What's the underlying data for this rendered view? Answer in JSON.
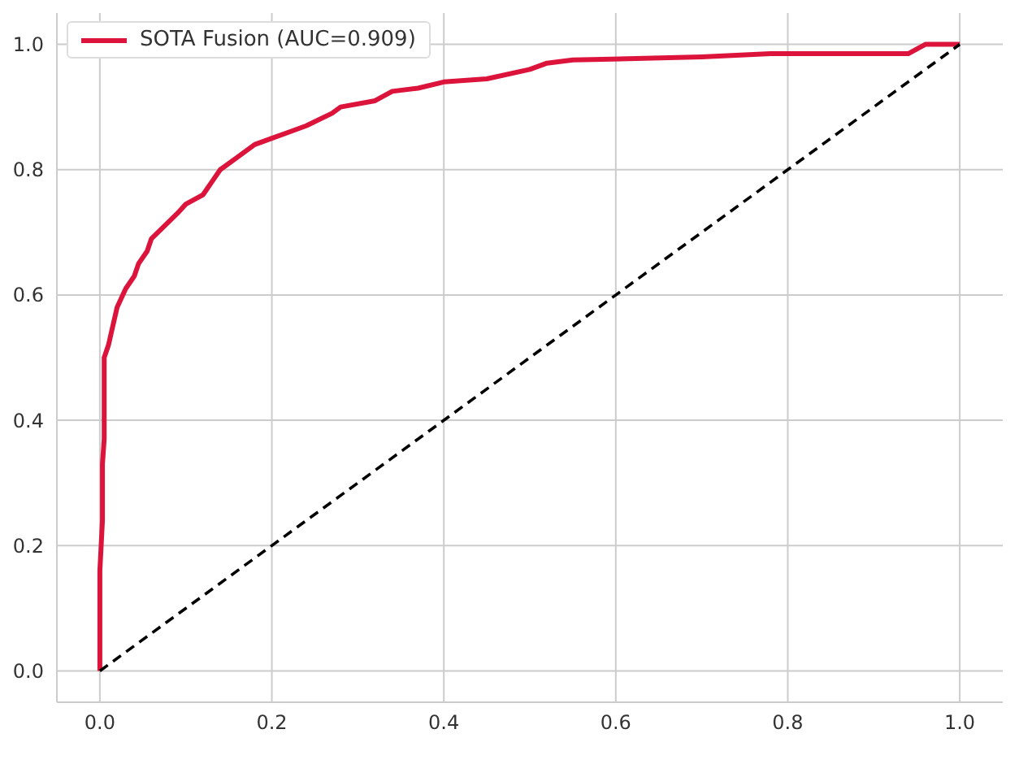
{
  "chart_data": {
    "type": "line",
    "xlim": [
      -0.05,
      1.05
    ],
    "ylim": [
      -0.05,
      1.05
    ],
    "xticks": [
      {
        "value": 0,
        "label": "0.0"
      },
      {
        "value": 0.2,
        "label": "0.2"
      },
      {
        "value": 0.4,
        "label": "0.4"
      },
      {
        "value": 0.6,
        "label": "0.6"
      },
      {
        "value": 0.8,
        "label": "0.8"
      },
      {
        "value": 1,
        "label": "1.0"
      }
    ],
    "yticks": [
      {
        "value": 0,
        "label": "0.0"
      },
      {
        "value": 0.2,
        "label": "0.2"
      },
      {
        "value": 0.4,
        "label": "0.4"
      },
      {
        "value": 0.6,
        "label": "0.6"
      },
      {
        "value": 0.8,
        "label": "0.8"
      },
      {
        "value": 1,
        "label": "1.0"
      }
    ],
    "grid": true,
    "legend": "top left",
    "marker": "none",
    "series": [
      {
        "name": "SOTA Fusion (AUC=0.909)",
        "color": "#dc143c",
        "line_style": "solid",
        "x": [
          0,
          0,
          0.003,
          0.003,
          0.005,
          0.005,
          0.01,
          0.015,
          0.02,
          0.03,
          0.04,
          0.045,
          0.055,
          0.06,
          0.075,
          0.09,
          0.1,
          0.12,
          0.13,
          0.14,
          0.16,
          0.18,
          0.2,
          0.22,
          0.24,
          0.27,
          0.28,
          0.32,
          0.34,
          0.37,
          0.4,
          0.45,
          0.5,
          0.52,
          0.55,
          0.7,
          0.78,
          0.94,
          0.96,
          1
        ],
        "values": [
          0,
          0.16,
          0.24,
          0.33,
          0.37,
          0.5,
          0.52,
          0.55,
          0.58,
          0.61,
          0.63,
          0.65,
          0.67,
          0.69,
          0.71,
          0.73,
          0.745,
          0.76,
          0.78,
          0.8,
          0.82,
          0.84,
          0.85,
          0.86,
          0.87,
          0.89,
          0.9,
          0.91,
          0.925,
          0.93,
          0.94,
          0.945,
          0.96,
          0.97,
          0.975,
          0.98,
          0.985,
          0.985,
          1,
          1
        ]
      },
      {
        "color": "#000000",
        "line_style": "dashed",
        "x": [
          0,
          1
        ],
        "values": [
          0,
          1
        ]
      }
    ]
  }
}
